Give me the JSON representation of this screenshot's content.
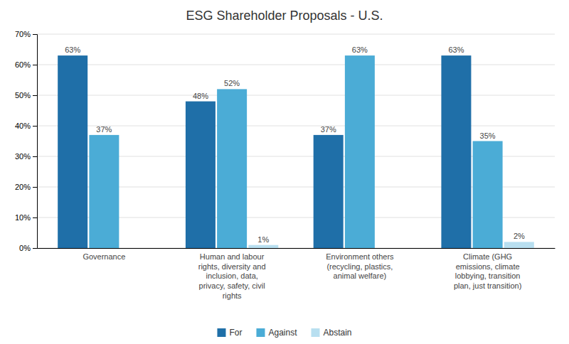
{
  "chart_data": {
    "type": "bar",
    "title": "ESG Shareholder Proposals - U.S.",
    "categories": [
      "Governance",
      "Human and labour\nrights, diversity and\ninclusion, data,\nprivacy, safety, civil\nrights",
      "Environment others\n(recycling, plastics,\nanimal welfare)",
      "Climate (GHG\nemissions, climate\nlobbying, transition\nplan, just transition)"
    ],
    "series": [
      {
        "name": "For",
        "color": "#1f6fa8",
        "values": [
          63,
          48,
          37,
          63
        ],
        "value_labels": [
          "63%",
          "48%",
          "37%",
          "63%"
        ]
      },
      {
        "name": "Against",
        "color": "#4bacd6",
        "values": [
          37,
          52,
          63,
          35
        ],
        "value_labels": [
          "37%",
          "52%",
          "63%",
          "35%"
        ]
      },
      {
        "name": "Abstain",
        "color": "#b8dff0",
        "values": [
          0,
          1,
          0,
          2
        ],
        "value_labels": [
          null,
          "1%",
          null,
          "2%"
        ]
      }
    ],
    "ylim": [
      0,
      70
    ],
    "yticks": [
      {
        "value": 0,
        "label": "0%"
      },
      {
        "value": 10,
        "label": "10%"
      },
      {
        "value": 20,
        "label": "20%"
      },
      {
        "value": 30,
        "label": "30%"
      },
      {
        "value": 40,
        "label": "40%"
      },
      {
        "value": 50,
        "label": "50%"
      },
      {
        "value": 60,
        "label": "60%"
      },
      {
        "value": 70,
        "label": "70%"
      }
    ],
    "grid": true,
    "data_labels": true,
    "legend": "bottom"
  }
}
